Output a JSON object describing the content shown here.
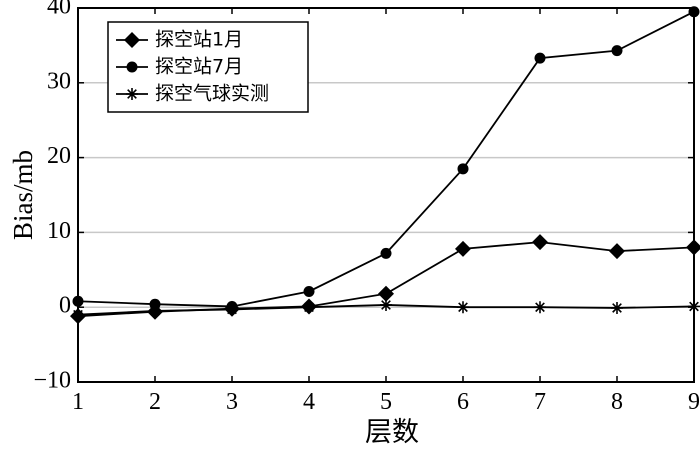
{
  "chart_data": {
    "type": "line",
    "title": "",
    "xlabel": "层数",
    "ylabel": "Bias/mb",
    "x": [
      1,
      2,
      3,
      4,
      5,
      6,
      7,
      8,
      9
    ],
    "xlim": [
      1,
      9
    ],
    "ylim": [
      -10,
      40
    ],
    "xticks": [
      "1",
      "2",
      "3",
      "4",
      "5",
      "6",
      "7",
      "8",
      "9"
    ],
    "yticks": [
      {
        "value": -10,
        "label": "−10"
      },
      {
        "value": 0,
        "label": "0"
      },
      {
        "value": 10,
        "label": "10"
      },
      {
        "value": 20,
        "label": "20"
      },
      {
        "value": 30,
        "label": "30"
      },
      {
        "value": 40,
        "label": "40"
      }
    ],
    "grid": "horizontal",
    "legend_position": "top-left",
    "series": [
      {
        "name": "探空站1月",
        "marker": "diamond",
        "values": [
          -1.2,
          -0.6,
          -0.2,
          0.1,
          1.8,
          7.8,
          8.7,
          7.5,
          8.0
        ]
      },
      {
        "name": "探空站7月",
        "marker": "circle",
        "values": [
          0.8,
          0.4,
          0.1,
          2.1,
          7.2,
          18.5,
          33.3,
          34.3,
          39.5
        ]
      },
      {
        "name": "探空气球实测",
        "marker": "asterisk",
        "values": [
          -1.0,
          -0.5,
          -0.3,
          0.0,
          0.3,
          0.0,
          0.0,
          -0.1,
          0.1
        ]
      }
    ]
  }
}
